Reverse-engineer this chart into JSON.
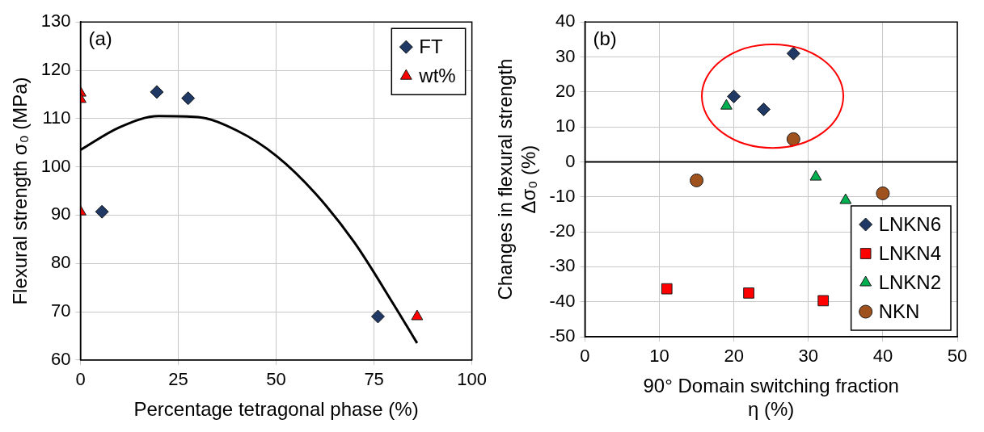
{
  "chart_data": [
    {
      "type": "scatter",
      "xlabel": "Percentage tetragonal phase (%)",
      "ylabel": "Flexural strength σ₀ (MPa)",
      "annotations": [
        "(a)"
      ],
      "xlim": [
        0,
        100
      ],
      "xticks": [
        0,
        25,
        50,
        75,
        100
      ],
      "ylim": [
        60,
        130
      ],
      "yticks": [
        60,
        70,
        80,
        90,
        100,
        110,
        120,
        130
      ],
      "grid": true,
      "legend": "top right",
      "series": [
        {
          "name": "FT",
          "color": "#203864",
          "marker": "diamond",
          "x": [
            5.5,
            19.5,
            27.5,
            76
          ],
          "values": [
            90.7,
            115.5,
            114.2,
            69
          ]
        },
        {
          "name": "wt%",
          "color": "#ff0000",
          "marker": "triangle",
          "x": [
            0,
            0,
            0,
            86
          ],
          "values": [
            115.3,
            114,
            90.7,
            69
          ]
        },
        {
          "type": "line",
          "color": "#000000",
          "marker": "none",
          "x": [
            0,
            10,
            20,
            30,
            40,
            50,
            60,
            70,
            80,
            86
          ],
          "values": [
            103.5,
            108.2,
            110.5,
            110.3,
            107.5,
            102.3,
            94.5,
            84.3,
            71.5,
            63.5
          ]
        }
      ]
    },
    {
      "type": "scatter",
      "xlabel": "90° Domain switching fraction\nη (%)",
      "ylabel": "Changes in flexural strength\nΔσ₀ (%)",
      "annotations": [
        "(b)"
      ],
      "xlim": [
        0,
        50
      ],
      "xticks": [
        0,
        10,
        20,
        30,
        40,
        50
      ],
      "ylim": [
        -50,
        40
      ],
      "yticks": [
        -50,
        -40,
        -30,
        -20,
        -10,
        0,
        10,
        20,
        30,
        40
      ],
      "grid": true,
      "legend": "bottom right",
      "ref_lines": [
        {
          "axis": "y",
          "value": 0,
          "color": "#000000"
        }
      ],
      "series": [
        {
          "name": "LNKN6",
          "color": "#203864",
          "marker": "diamond",
          "x": [
            20,
            24,
            28
          ],
          "values": [
            18.7,
            15,
            31
          ]
        },
        {
          "name": "LNKN4",
          "color": "#ff0000",
          "marker": "square",
          "x": [
            11,
            22,
            32
          ],
          "values": [
            -36.3,
            -37.5,
            -39.7
          ]
        },
        {
          "name": "LNKN2",
          "color": "#00b050",
          "marker": "triangle",
          "x": [
            19,
            31,
            35
          ],
          "values": [
            16,
            -4.3,
            -11
          ]
        },
        {
          "name": "NKN",
          "color": "#a0521e",
          "marker": "circle",
          "x": [
            15,
            28,
            40
          ],
          "values": [
            -5.3,
            6.5,
            -9
          ]
        }
      ]
    }
  ]
}
